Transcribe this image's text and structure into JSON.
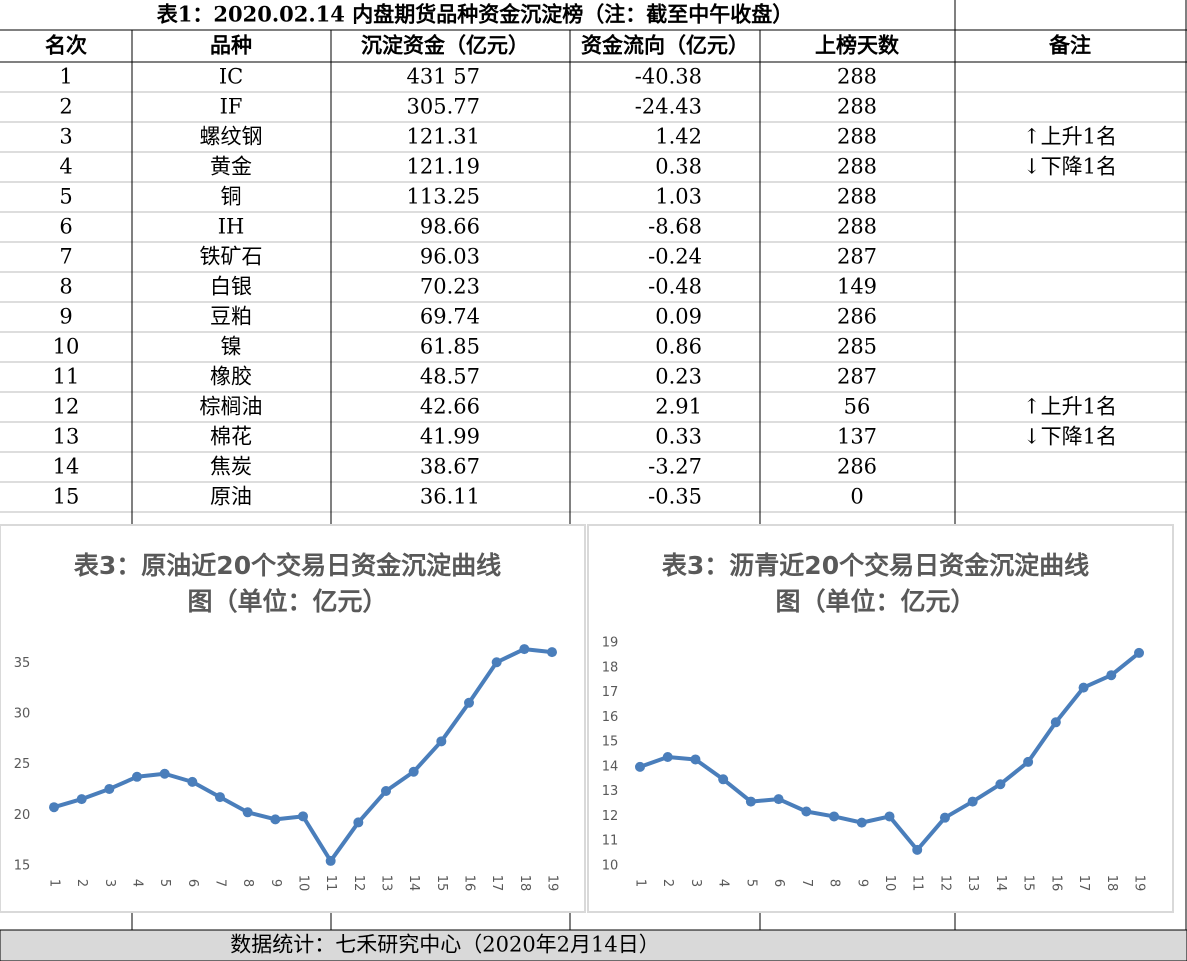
{
  "table": {
    "title": "表1：2020.02.14 内盘期货品种资金沉淀榜（注：截至中午收盘）",
    "header": [
      "名次",
      "品种",
      "沉淀资金（亿元）",
      "资金流向（亿元）",
      "上榜天数",
      "备注"
    ],
    "rows": [
      [
        "1",
        "IC",
        "431 57",
        "-40.38",
        "288",
        ""
      ],
      [
        "2",
        "IF",
        "305.77",
        "-24.43",
        "288",
        ""
      ],
      [
        "3",
        "螺纹钢",
        "121.31",
        "1.42",
        "288",
        "↑上升1名"
      ],
      [
        "4",
        "黄金",
        "121.19",
        "0.38",
        "288",
        "↓下降1名"
      ],
      [
        "5",
        "铜",
        "113.25",
        "1.03",
        "288",
        ""
      ],
      [
        "6",
        "IH",
        "98.66",
        "-8.68",
        "288",
        ""
      ],
      [
        "7",
        "铁矿石",
        "96.03",
        "-0.24",
        "287",
        ""
      ],
      [
        "8",
        "白银",
        "70.23",
        "-0.48",
        "149",
        ""
      ],
      [
        "9",
        "豆粕",
        "69.74",
        "0.09",
        "286",
        ""
      ],
      [
        "10",
        "镍",
        "61.85",
        "0.86",
        "285",
        ""
      ],
      [
        "11",
        "橡胶",
        "48.57",
        "0.23",
        "287",
        ""
      ],
      [
        "12",
        "棕榈油",
        "42.66",
        "2.91",
        "56",
        "↑上升1名"
      ],
      [
        "13",
        "棉花",
        "41.99",
        "0.33",
        "137",
        "↓下降1名"
      ],
      [
        "14",
        "焦炭",
        "38.67",
        "-3.27",
        "286",
        ""
      ],
      [
        "15",
        "原油",
        "36.11",
        "-0.35",
        "0",
        ""
      ]
    ]
  },
  "chart_data": [
    {
      "type": "line",
      "title": "表3：原油近20个交易日资金沉淀曲线图（单位：亿元）",
      "categories": [
        1,
        2,
        3,
        4,
        5,
        6,
        7,
        8,
        9,
        10,
        11,
        12,
        13,
        14,
        15,
        16,
        17,
        18,
        19
      ],
      "values": [
        20.8,
        21.6,
        22.6,
        23.8,
        24.1,
        23.3,
        21.8,
        20.3,
        19.6,
        19.9,
        15.5,
        19.3,
        22.4,
        24.3,
        27.3,
        31.1,
        35.1,
        36.4,
        36.1
      ],
      "color": "#4a7ebb",
      "ylim": [
        15,
        37
      ],
      "yticks": [
        15,
        20,
        25,
        30,
        35
      ]
    },
    {
      "type": "line",
      "title": "表3：沥青近20个交易日资金沉淀曲线图（单位：亿元）",
      "categories": [
        1,
        2,
        3,
        4,
        5,
        6,
        7,
        8,
        9,
        10,
        11,
        12,
        13,
        14,
        15,
        16,
        17,
        18,
        19
      ],
      "values": [
        14.0,
        14.4,
        14.3,
        13.5,
        12.6,
        12.7,
        12.2,
        12.0,
        11.75,
        12.0,
        10.65,
        11.95,
        12.6,
        13.3,
        14.2,
        15.8,
        17.2,
        17.7,
        18.6
      ],
      "color": "#4a7ebb",
      "ylim": [
        10,
        19
      ],
      "yticks": [
        10,
        11,
        12,
        13,
        14,
        15,
        16,
        17,
        18,
        19
      ]
    }
  ],
  "footer": "数据统计：七禾研究中心（2020年2月14日）"
}
